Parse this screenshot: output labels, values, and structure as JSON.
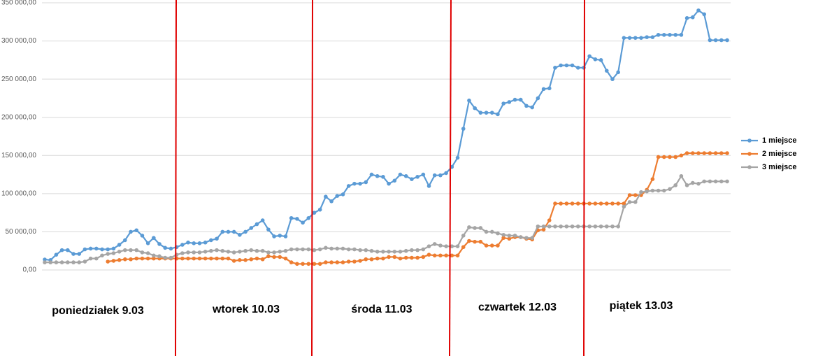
{
  "chart_data": {
    "type": "line",
    "categories": [
      null,
      null,
      null,
      null,
      null,
      null,
      null,
      null,
      null,
      null,
      null,
      null,
      null,
      null,
      null,
      null,
      null,
      null,
      null,
      null,
      null,
      null,
      null,
      null,
      null,
      null,
      null,
      null,
      null,
      null,
      null,
      null,
      null,
      null,
      null,
      null,
      null,
      null,
      null,
      null,
      null,
      null,
      null,
      null,
      null,
      null,
      null,
      null,
      null,
      null,
      null,
      null,
      null,
      null,
      null,
      null,
      null,
      null,
      null,
      null,
      null,
      null,
      null,
      null,
      null,
      null,
      null,
      null,
      null,
      null,
      null,
      null,
      null,
      null,
      null,
      null,
      null,
      null,
      null,
      null,
      null,
      null,
      null,
      null,
      null,
      null,
      null,
      null,
      null,
      null,
      null,
      null,
      null,
      null,
      null,
      null,
      null,
      null,
      null,
      null,
      null,
      null,
      null,
      null,
      null,
      null,
      null,
      null,
      null,
      null,
      null,
      null,
      null,
      null,
      null,
      null,
      null,
      null,
      null,
      null
    ],
    "ylim": [
      0,
      350000
    ],
    "yticks": [
      {
        "value": 0,
        "label": "0,00"
      },
      {
        "value": 50000,
        "label": "50 000,00"
      },
      {
        "value": 100000,
        "label": "100 000,00"
      },
      {
        "value": 150000,
        "label": "150 000,00"
      },
      {
        "value": 200000,
        "label": "200 000,00"
      },
      {
        "value": 250000,
        "label": "250 000,00"
      },
      {
        "value": 300000,
        "label": "300 000,00"
      },
      {
        "value": 350000,
        "label": "350 000,00"
      }
    ],
    "grid": true,
    "legend": "right",
    "annotations": [
      "poniedziałek 9.03",
      "wtorek 10.03",
      "środa 11.03",
      "czwartek 12.03",
      "piątek 13.03"
    ],
    "series": [
      {
        "name": "1 miejsce",
        "color": "#5b9bd5",
        "values": [
          13700,
          13000,
          20000,
          26000,
          26000,
          21000,
          21000,
          27000,
          28000,
          28000,
          27000,
          27000,
          28000,
          33000,
          39000,
          50000,
          52000,
          45000,
          35000,
          42000,
          34000,
          29000,
          28000,
          30000,
          33000,
          36000,
          35000,
          35000,
          36000,
          39000,
          41000,
          50000,
          50000,
          50000,
          46000,
          50000,
          55000,
          60000,
          65000,
          53000,
          44000,
          45000,
          44000,
          68000,
          67000,
          62000,
          68000,
          75000,
          79000,
          96000,
          90000,
          97000,
          99000,
          110000,
          113000,
          113000,
          115000,
          125000,
          123000,
          122000,
          113000,
          117000,
          125000,
          123000,
          119000,
          122000,
          125000,
          110000,
          124000,
          124000,
          127000,
          135000,
          147000,
          185000,
          222000,
          212000,
          206000,
          206000,
          206000,
          204000,
          218000,
          220000,
          223000,
          223000,
          215000,
          213000,
          225000,
          237000,
          238000,
          265000,
          268000,
          268000,
          268000,
          265000,
          265000,
          280000,
          276000,
          275000,
          261000,
          250000,
          259000,
          304000,
          304000,
          304000,
          304000,
          305000,
          305000,
          308000,
          308000,
          308000,
          308000,
          308000,
          330000,
          331000,
          340000,
          335000,
          301000,
          301000,
          301000,
          301000
        ]
      },
      {
        "name": "2 miejsce",
        "color": "#ed7d31",
        "values": [
          null,
          null,
          null,
          null,
          null,
          null,
          null,
          null,
          null,
          null,
          null,
          11000,
          12000,
          13000,
          14000,
          14000,
          15000,
          15000,
          15000,
          15000,
          15000,
          15000,
          15000,
          15000,
          15000,
          15000,
          15000,
          15000,
          15000,
          15000,
          15000,
          15000,
          15000,
          12000,
          13000,
          13000,
          14000,
          15000,
          14000,
          18000,
          17000,
          17000,
          15000,
          10000,
          8000,
          8000,
          8000,
          8000,
          8000,
          10000,
          10000,
          10000,
          10000,
          11000,
          11000,
          12000,
          14000,
          14000,
          15000,
          15000,
          17000,
          17000,
          15000,
          16000,
          16000,
          16000,
          17000,
          20000,
          19000,
          19000,
          19000,
          19000,
          19000,
          30000,
          38000,
          37000,
          37000,
          32000,
          32000,
          32000,
          42000,
          41000,
          43000,
          43000,
          41000,
          40000,
          52000,
          53000,
          65000,
          87000,
          87000,
          87000,
          87000,
          87000,
          87000,
          87000,
          87000,
          87000,
          87000,
          87000,
          87000,
          87000,
          98000,
          98000,
          98000,
          105000,
          119000,
          148000,
          148000,
          148000,
          148000,
          150000,
          153000,
          153000,
          153000,
          153000,
          153000,
          153000,
          153000,
          153000
        ]
      },
      {
        "name": "3 miejsce",
        "color": "#a5a5a5",
        "values": [
          10000,
          10000,
          10000,
          10000,
          10000,
          10000,
          10000,
          11000,
          15000,
          15000,
          19000,
          21000,
          22000,
          24000,
          26000,
          26000,
          26000,
          23000,
          22000,
          19000,
          18000,
          16000,
          16000,
          20000,
          22000,
          23000,
          23000,
          23000,
          24000,
          25000,
          26000,
          25000,
          24000,
          23000,
          24000,
          25000,
          26000,
          25000,
          25000,
          23000,
          23000,
          24000,
          25000,
          27000,
          27000,
          27000,
          27000,
          26000,
          27000,
          29000,
          28000,
          28000,
          28000,
          27000,
          27000,
          26000,
          26000,
          25000,
          24000,
          24000,
          24000,
          24000,
          24000,
          25000,
          26000,
          26000,
          27000,
          31000,
          34000,
          32000,
          31000,
          31000,
          31000,
          45000,
          56000,
          55000,
          55000,
          50000,
          50000,
          48000,
          46000,
          45000,
          45000,
          43000,
          42000,
          42000,
          57000,
          57000,
          57000,
          57000,
          57000,
          57000,
          57000,
          57000,
          57000,
          57000,
          57000,
          57000,
          57000,
          57000,
          57000,
          83000,
          89000,
          89000,
          102000,
          103000,
          104000,
          104000,
          104000,
          106000,
          111000,
          123000,
          111000,
          114000,
          113000,
          116000,
          116000,
          116000,
          116000,
          116000
        ]
      }
    ]
  }
}
